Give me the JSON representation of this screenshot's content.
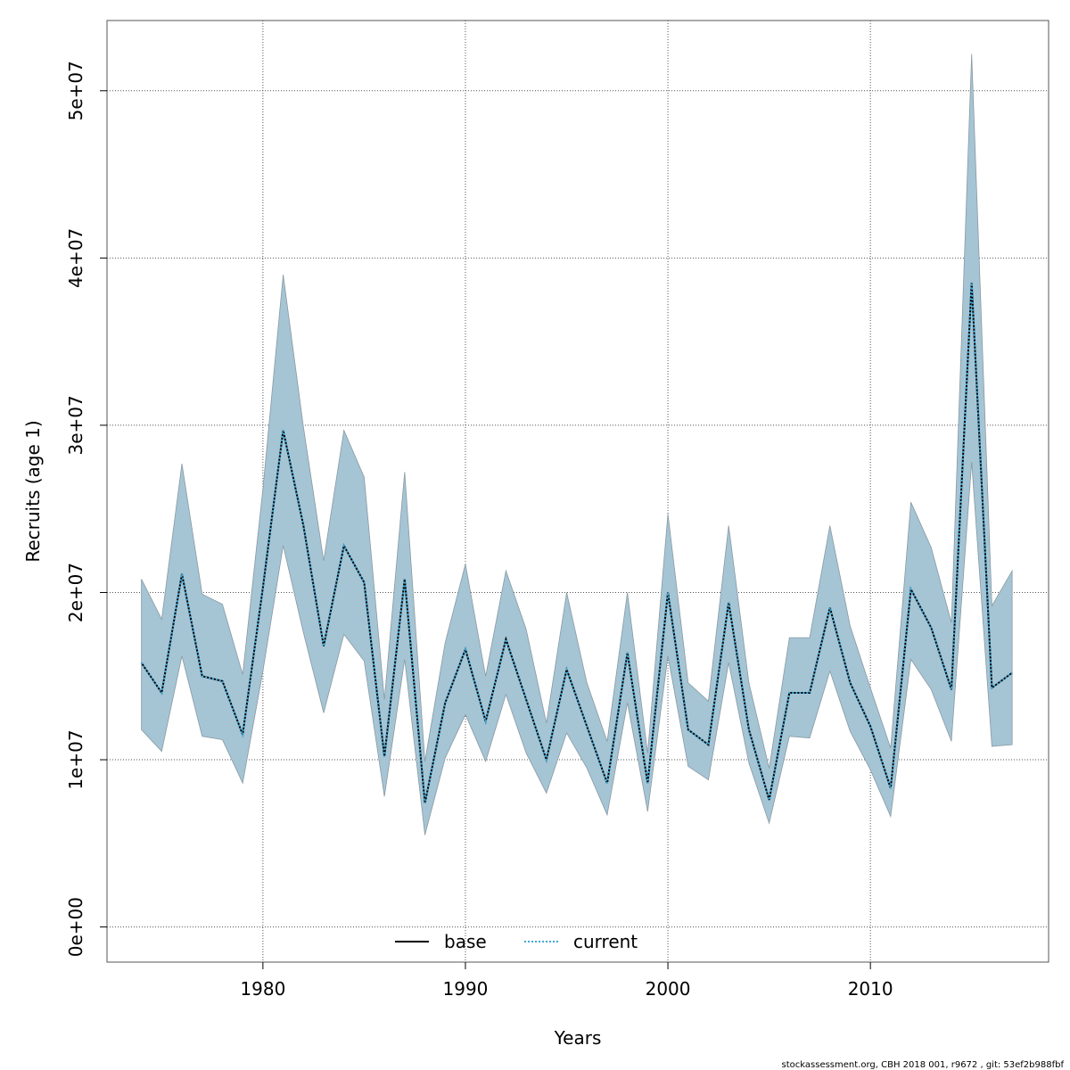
{
  "chart_data": {
    "type": "line",
    "title": "",
    "xlabel": "Years",
    "ylabel": "Recruits (age 1)",
    "xlim": [
      1972.3,
      2018.8
    ],
    "ylim": [
      -2100000,
      54200000
    ],
    "x_ticks": [
      1980,
      1990,
      2000,
      2010
    ],
    "x_tick_labels": [
      "1980",
      "1990",
      "2000",
      "2010"
    ],
    "y_ticks": [
      0,
      10000000,
      20000000,
      30000000,
      40000000,
      50000000
    ],
    "y_tick_labels": [
      "0e+00",
      "1e+07",
      "2e+07",
      "3e+07",
      "4e+07",
      "5e+07"
    ],
    "grid": true,
    "legend": {
      "placement": "bottom",
      "entries": [
        "base",
        "current"
      ]
    },
    "x": [
      1974,
      1975,
      1976,
      1977,
      1978,
      1979,
      1980,
      1981,
      1982,
      1983,
      1984,
      1985,
      1986,
      1987,
      1988,
      1989,
      1990,
      1991,
      1992,
      1993,
      1994,
      1995,
      1996,
      1997,
      1998,
      1999,
      2000,
      2001,
      2002,
      2003,
      2004,
      2005,
      2006,
      2007,
      2008,
      2009,
      2010,
      2011,
      2012,
      2013,
      2014,
      2015,
      2016,
      2017
    ],
    "series": [
      {
        "name": "base",
        "values_millions": [
          15.8,
          14.0,
          21.1,
          15.0,
          14.7,
          11.5,
          20.3,
          29.7,
          24.0,
          16.8,
          22.8,
          20.6,
          10.2,
          20.8,
          7.4,
          13.4,
          16.6,
          12.3,
          17.2,
          13.6,
          10.0,
          15.4,
          12.0,
          8.6,
          16.4,
          8.6,
          20.0,
          11.8,
          10.9,
          19.4,
          11.8,
          7.6,
          14.0,
          14.0,
          19.1,
          14.6,
          12.0,
          8.3,
          20.2,
          17.9,
          14.2,
          38.5,
          14.3,
          15.2
        ]
      },
      {
        "name": "current",
        "values_millions": [
          15.8,
          14.0,
          21.1,
          15.0,
          14.7,
          11.5,
          20.3,
          29.7,
          24.0,
          16.8,
          22.8,
          20.6,
          10.2,
          20.8,
          7.4,
          13.4,
          16.6,
          12.3,
          17.2,
          13.6,
          10.0,
          15.4,
          12.0,
          8.6,
          16.4,
          8.6,
          20.0,
          11.8,
          10.9,
          19.4,
          11.8,
          7.6,
          14.0,
          14.0,
          19.1,
          14.6,
          12.0,
          8.3,
          20.2,
          17.9,
          14.2,
          38.5,
          14.3,
          15.2
        ]
      }
    ],
    "confidence_band": {
      "upper_millions": [
        20.8,
        18.4,
        27.7,
        19.9,
        19.3,
        15.1,
        26.2,
        39.0,
        29.9,
        21.9,
        29.7,
        26.9,
        13.6,
        27.2,
        9.9,
        17.0,
        21.7,
        15.0,
        21.3,
        17.8,
        12.2,
        20.0,
        14.6,
        11.1,
        20.0,
        10.4,
        24.7,
        14.6,
        13.5,
        24.0,
        14.6,
        9.5,
        17.3,
        17.3,
        24.0,
        18.0,
        14.3,
        10.7,
        25.4,
        22.7,
        18.2,
        52.2,
        19.2,
        21.3
      ],
      "lower_millions": [
        11.8,
        10.5,
        16.2,
        11.4,
        11.2,
        8.6,
        15.3,
        22.8,
        17.6,
        12.8,
        17.5,
        15.9,
        7.8,
        16.0,
        5.5,
        10.1,
        12.7,
        9.9,
        13.9,
        10.4,
        8.0,
        11.6,
        9.5,
        6.7,
        13.4,
        6.9,
        16.2,
        9.6,
        8.8,
        15.8,
        9.8,
        6.2,
        11.4,
        11.3,
        15.3,
        11.7,
        9.4,
        6.6,
        16.0,
        14.2,
        11.1,
        27.8,
        10.8,
        10.9
      ]
    },
    "colors": {
      "band": "#a5c4d4",
      "band_edge": "#8a9aa3",
      "base": "#000000",
      "current": "#3fa9d8"
    }
  },
  "footer": "stockassessment.org, CBH  2018  001, r9672 , git: 53ef2b988fbf"
}
